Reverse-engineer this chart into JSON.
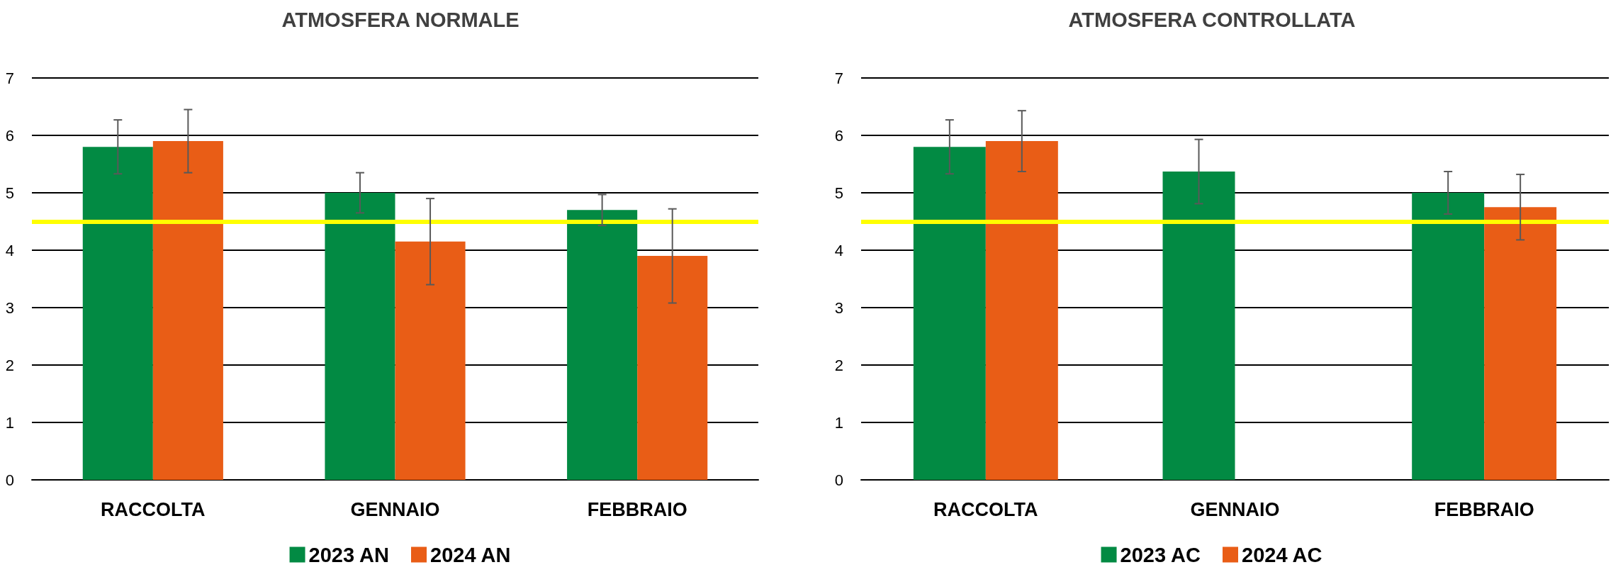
{
  "chart_data": [
    {
      "type": "bar",
      "title": "ATMOSFERA NORMALE",
      "categories": [
        "RACCOLTA",
        "GENNAIO",
        "FEBBRAIO"
      ],
      "series": [
        {
          "name": "2023 AN",
          "color": "#028a43",
          "values": [
            5.8,
            5.0,
            4.7
          ],
          "errors": [
            0.47,
            0.35,
            0.27
          ]
        },
        {
          "name": "2024 AN",
          "color": "#e95d16",
          "values": [
            5.9,
            4.15,
            3.9
          ],
          "errors": [
            0.55,
            0.75,
            0.82
          ]
        }
      ],
      "ylim": [
        0,
        7
      ],
      "yticks": [
        0,
        1,
        2,
        3,
        4,
        5,
        6,
        7
      ],
      "grid": "y",
      "legend": "bottom",
      "ref_lines": [
        {
          "axis": "y",
          "value": 4.5,
          "color": "#ffff00"
        }
      ]
    },
    {
      "type": "bar",
      "title": "ATMOSFERA CONTROLLATA",
      "categories": [
        "RACCOLTA",
        "GENNAIO",
        "FEBBRAIO"
      ],
      "series": [
        {
          "name": "2023 AC",
          "color": "#028a43",
          "values": [
            5.8,
            5.37,
            5.0
          ],
          "errors": [
            0.47,
            0.56,
            0.37
          ]
        },
        {
          "name": "2024 AC",
          "color": "#e95d16",
          "values": [
            5.9,
            null,
            4.75
          ],
          "errors": [
            0.53,
            null,
            0.57
          ]
        }
      ],
      "ylim": [
        0,
        7
      ],
      "yticks": [
        0,
        1,
        2,
        3,
        4,
        5,
        6,
        7
      ],
      "grid": "y",
      "legend": "bottom",
      "ref_lines": [
        {
          "axis": "y",
          "value": 4.5,
          "color": "#ffff00"
        }
      ]
    }
  ]
}
